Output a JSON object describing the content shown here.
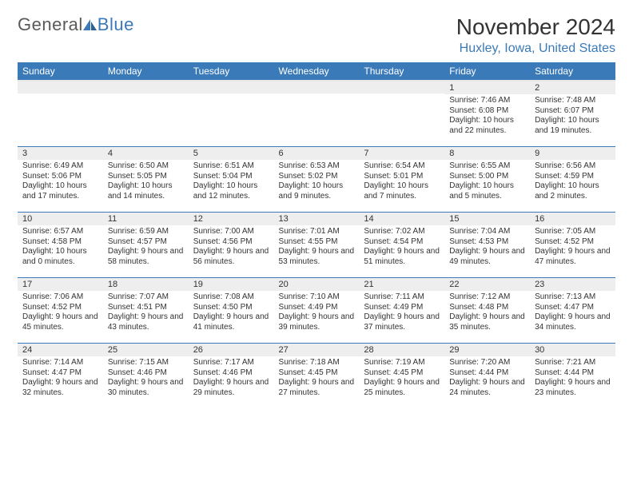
{
  "logo": {
    "part1": "General",
    "part2": "Blue"
  },
  "title": "November 2024",
  "location": "Huxley, Iowa, United States",
  "colors": {
    "header_bg": "#3a7ab8",
    "header_fg": "#ffffff",
    "daynum_bg": "#eeeeee",
    "row_divider": "#3a7ab8",
    "text": "#333333",
    "logo_gray": "#5a5a5a",
    "logo_blue": "#3a7ab8"
  },
  "typography": {
    "title_fontsize": 28,
    "location_fontsize": 16,
    "dayheader_fontsize": 12,
    "daynum_fontsize": 11,
    "body_fontsize": 10
  },
  "day_headers": [
    "Sunday",
    "Monday",
    "Tuesday",
    "Wednesday",
    "Thursday",
    "Friday",
    "Saturday"
  ],
  "weeks": [
    [
      null,
      null,
      null,
      null,
      null,
      {
        "n": "1",
        "sunrise": "7:46 AM",
        "sunset": "6:08 PM",
        "daylight": "10 hours and 22 minutes."
      },
      {
        "n": "2",
        "sunrise": "7:48 AM",
        "sunset": "6:07 PM",
        "daylight": "10 hours and 19 minutes."
      }
    ],
    [
      {
        "n": "3",
        "sunrise": "6:49 AM",
        "sunset": "5:06 PM",
        "daylight": "10 hours and 17 minutes."
      },
      {
        "n": "4",
        "sunrise": "6:50 AM",
        "sunset": "5:05 PM",
        "daylight": "10 hours and 14 minutes."
      },
      {
        "n": "5",
        "sunrise": "6:51 AM",
        "sunset": "5:04 PM",
        "daylight": "10 hours and 12 minutes."
      },
      {
        "n": "6",
        "sunrise": "6:53 AM",
        "sunset": "5:02 PM",
        "daylight": "10 hours and 9 minutes."
      },
      {
        "n": "7",
        "sunrise": "6:54 AM",
        "sunset": "5:01 PM",
        "daylight": "10 hours and 7 minutes."
      },
      {
        "n": "8",
        "sunrise": "6:55 AM",
        "sunset": "5:00 PM",
        "daylight": "10 hours and 5 minutes."
      },
      {
        "n": "9",
        "sunrise": "6:56 AM",
        "sunset": "4:59 PM",
        "daylight": "10 hours and 2 minutes."
      }
    ],
    [
      {
        "n": "10",
        "sunrise": "6:57 AM",
        "sunset": "4:58 PM",
        "daylight": "10 hours and 0 minutes."
      },
      {
        "n": "11",
        "sunrise": "6:59 AM",
        "sunset": "4:57 PM",
        "daylight": "9 hours and 58 minutes."
      },
      {
        "n": "12",
        "sunrise": "7:00 AM",
        "sunset": "4:56 PM",
        "daylight": "9 hours and 56 minutes."
      },
      {
        "n": "13",
        "sunrise": "7:01 AM",
        "sunset": "4:55 PM",
        "daylight": "9 hours and 53 minutes."
      },
      {
        "n": "14",
        "sunrise": "7:02 AM",
        "sunset": "4:54 PM",
        "daylight": "9 hours and 51 minutes."
      },
      {
        "n": "15",
        "sunrise": "7:04 AM",
        "sunset": "4:53 PM",
        "daylight": "9 hours and 49 minutes."
      },
      {
        "n": "16",
        "sunrise": "7:05 AM",
        "sunset": "4:52 PM",
        "daylight": "9 hours and 47 minutes."
      }
    ],
    [
      {
        "n": "17",
        "sunrise": "7:06 AM",
        "sunset": "4:52 PM",
        "daylight": "9 hours and 45 minutes."
      },
      {
        "n": "18",
        "sunrise": "7:07 AM",
        "sunset": "4:51 PM",
        "daylight": "9 hours and 43 minutes."
      },
      {
        "n": "19",
        "sunrise": "7:08 AM",
        "sunset": "4:50 PM",
        "daylight": "9 hours and 41 minutes."
      },
      {
        "n": "20",
        "sunrise": "7:10 AM",
        "sunset": "4:49 PM",
        "daylight": "9 hours and 39 minutes."
      },
      {
        "n": "21",
        "sunrise": "7:11 AM",
        "sunset": "4:49 PM",
        "daylight": "9 hours and 37 minutes."
      },
      {
        "n": "22",
        "sunrise": "7:12 AM",
        "sunset": "4:48 PM",
        "daylight": "9 hours and 35 minutes."
      },
      {
        "n": "23",
        "sunrise": "7:13 AM",
        "sunset": "4:47 PM",
        "daylight": "9 hours and 34 minutes."
      }
    ],
    [
      {
        "n": "24",
        "sunrise": "7:14 AM",
        "sunset": "4:47 PM",
        "daylight": "9 hours and 32 minutes."
      },
      {
        "n": "25",
        "sunrise": "7:15 AM",
        "sunset": "4:46 PM",
        "daylight": "9 hours and 30 minutes."
      },
      {
        "n": "26",
        "sunrise": "7:17 AM",
        "sunset": "4:46 PM",
        "daylight": "9 hours and 29 minutes."
      },
      {
        "n": "27",
        "sunrise": "7:18 AM",
        "sunset": "4:45 PM",
        "daylight": "9 hours and 27 minutes."
      },
      {
        "n": "28",
        "sunrise": "7:19 AM",
        "sunset": "4:45 PM",
        "daylight": "9 hours and 25 minutes."
      },
      {
        "n": "29",
        "sunrise": "7:20 AM",
        "sunset": "4:44 PM",
        "daylight": "9 hours and 24 minutes."
      },
      {
        "n": "30",
        "sunrise": "7:21 AM",
        "sunset": "4:44 PM",
        "daylight": "9 hours and 23 minutes."
      }
    ]
  ],
  "labels": {
    "sunrise": "Sunrise:",
    "sunset": "Sunset:",
    "daylight": "Daylight:"
  }
}
